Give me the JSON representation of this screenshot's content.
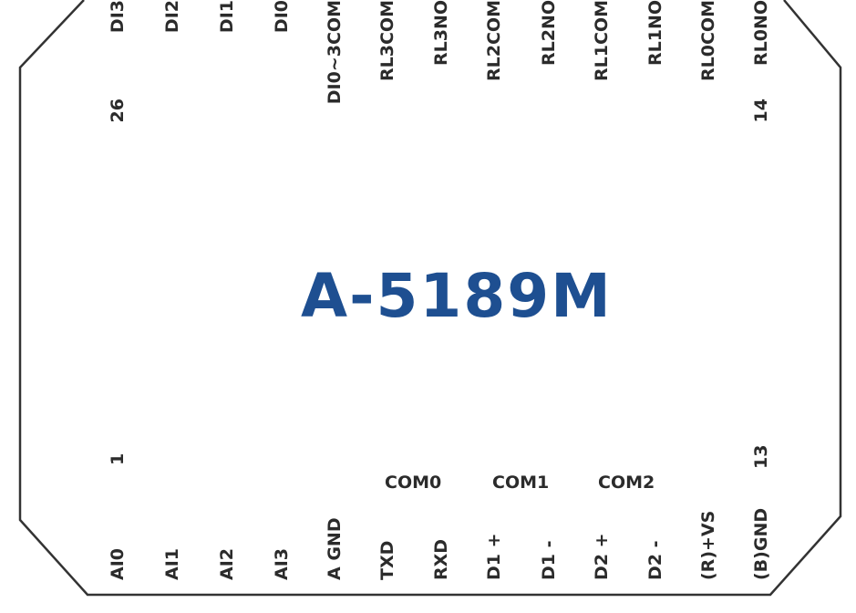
{
  "title": "A-5189M",
  "colors": {
    "outline": "#333333",
    "text": "#2b2b2b",
    "title": "#1e4f91"
  },
  "top_pins": [
    {
      "id": "di3",
      "label": "DI3"
    },
    {
      "id": "di2",
      "label": "DI2"
    },
    {
      "id": "di1",
      "label": "DI1"
    },
    {
      "id": "di0",
      "label": "DI0"
    },
    {
      "id": "di0-3-com",
      "label": "DI0~3COM"
    },
    {
      "id": "rl3-com",
      "label": "RL3COM"
    },
    {
      "id": "rl3-no",
      "label": "RL3NO"
    },
    {
      "id": "rl2-com",
      "label": "RL2COM"
    },
    {
      "id": "rl2-no",
      "label": "RL2NO"
    },
    {
      "id": "rl1-com",
      "label": "RL1COM"
    },
    {
      "id": "rl1-no",
      "label": "RL1NO"
    },
    {
      "id": "rl0-com",
      "label": "RL0COM"
    },
    {
      "id": "rl0-no",
      "label": "RL0NO"
    }
  ],
  "bottom_pins": [
    {
      "id": "ai0",
      "label": "AI0"
    },
    {
      "id": "ai1",
      "label": "AI1"
    },
    {
      "id": "ai2",
      "label": "AI2"
    },
    {
      "id": "ai3",
      "label": "AI3"
    },
    {
      "id": "agnd",
      "label": "A GND"
    },
    {
      "id": "txd",
      "label": "TXD"
    },
    {
      "id": "rxd",
      "label": "RXD"
    },
    {
      "id": "d1-plus",
      "label": "D1 +"
    },
    {
      "id": "d1-minus",
      "label": "D1 -"
    },
    {
      "id": "d2-plus",
      "label": "D2 +"
    },
    {
      "id": "d2-minus",
      "label": "D2 -"
    },
    {
      "id": "r-vs",
      "label": "(R)+VS"
    },
    {
      "id": "b-gnd",
      "label": "(B)GND"
    }
  ],
  "pin_numbers": {
    "top_left": "26",
    "top_right": "14",
    "bottom_left": "1",
    "bottom_right": "13"
  },
  "groups": [
    {
      "id": "com0",
      "label": "COM0"
    },
    {
      "id": "com1",
      "label": "COM1"
    },
    {
      "id": "com2",
      "label": "COM2"
    }
  ]
}
